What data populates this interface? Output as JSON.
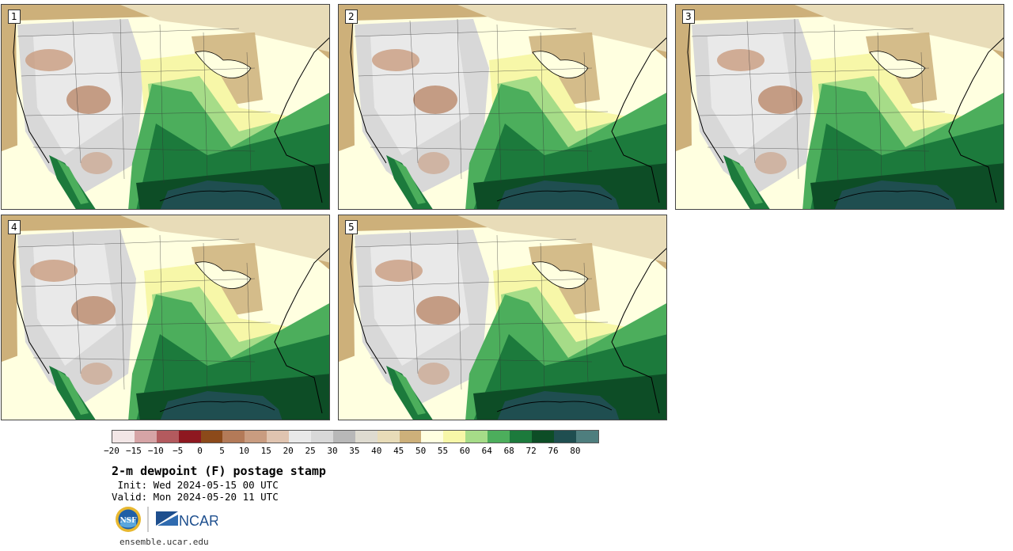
{
  "panels": [
    {
      "number": "1"
    },
    {
      "number": "2"
    },
    {
      "number": "3"
    },
    {
      "number": "4"
    },
    {
      "number": "5"
    }
  ],
  "colorbar": {
    "ticks": [
      "−20",
      "−15",
      "−10",
      "−5",
      "0",
      "5",
      "10",
      "15",
      "20",
      "25",
      "30",
      "35",
      "40",
      "45",
      "50",
      "55",
      "60",
      "64",
      "68",
      "72",
      "76",
      "80"
    ],
    "colors": [
      "#f2e6e6",
      "#d6a4a6",
      "#b35a5e",
      "#8e1820",
      "#8c4a1a",
      "#b37a58",
      "#c99c80",
      "#e0c4b0",
      "#e9e9e9",
      "#d8d8d8",
      "#b8b8b8",
      "#dedbd0",
      "#e8dcb8",
      "#cdb07a",
      "#ffffe0",
      "#f7f7a8",
      "#a6dc88",
      "#4cae5c",
      "#1c7a3c",
      "#0d4d26",
      "#1f4e50",
      "#4e7e7e"
    ]
  },
  "title": "2-m dewpoint (F) postage stamp",
  "init": " Init: Wed 2024-05-15 00 UTC",
  "valid": "Valid: Mon 2024-05-20 11 UTC",
  "logos": {
    "left": "NSF",
    "right": "NCAR"
  },
  "site": "ensemble.ucar.edu",
  "icons": [
    "nsf-logo",
    "ncar-logo"
  ]
}
